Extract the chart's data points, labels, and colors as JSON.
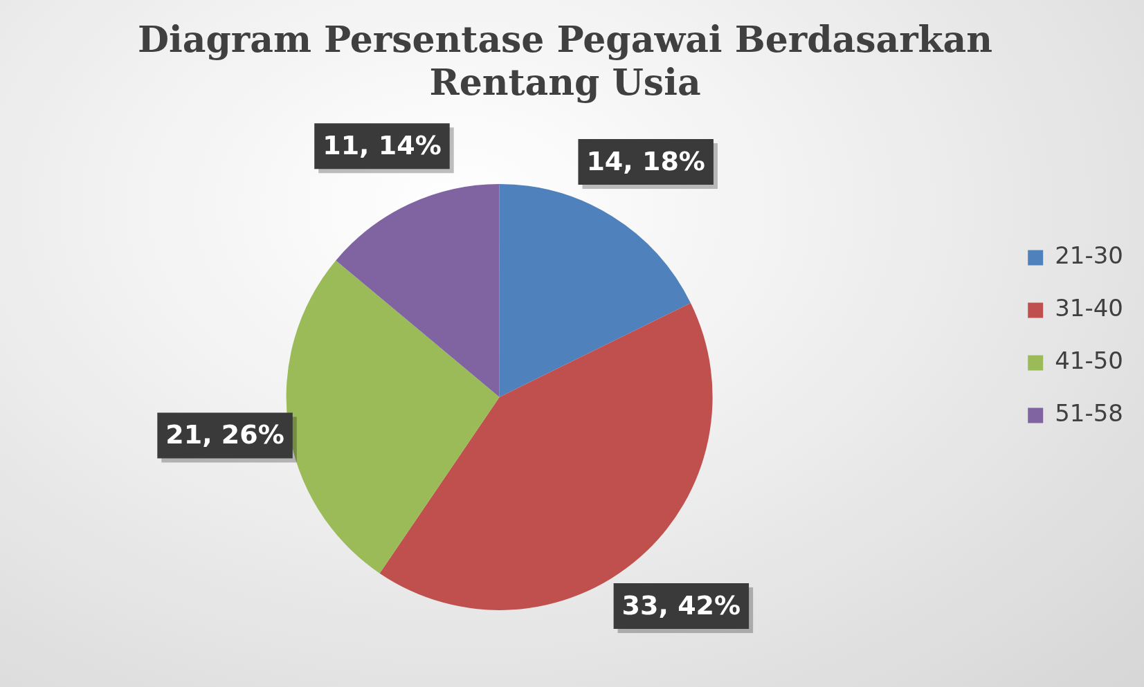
{
  "chart_data": {
    "type": "pie",
    "title": "Diagram Persentase Pegawai Berdasarkan Rentang Usia",
    "categories": [
      "21-30",
      "31-40",
      "41-50",
      "51-58"
    ],
    "values": [
      14,
      33,
      21,
      11
    ],
    "colors": [
      "#4f81bd",
      "#c0504d",
      "#9bbb59",
      "#8064a2"
    ],
    "value_labels": [
      "14, 18%",
      "33, 42%",
      "21, 26%",
      "11, 14%"
    ],
    "legend": "right"
  }
}
